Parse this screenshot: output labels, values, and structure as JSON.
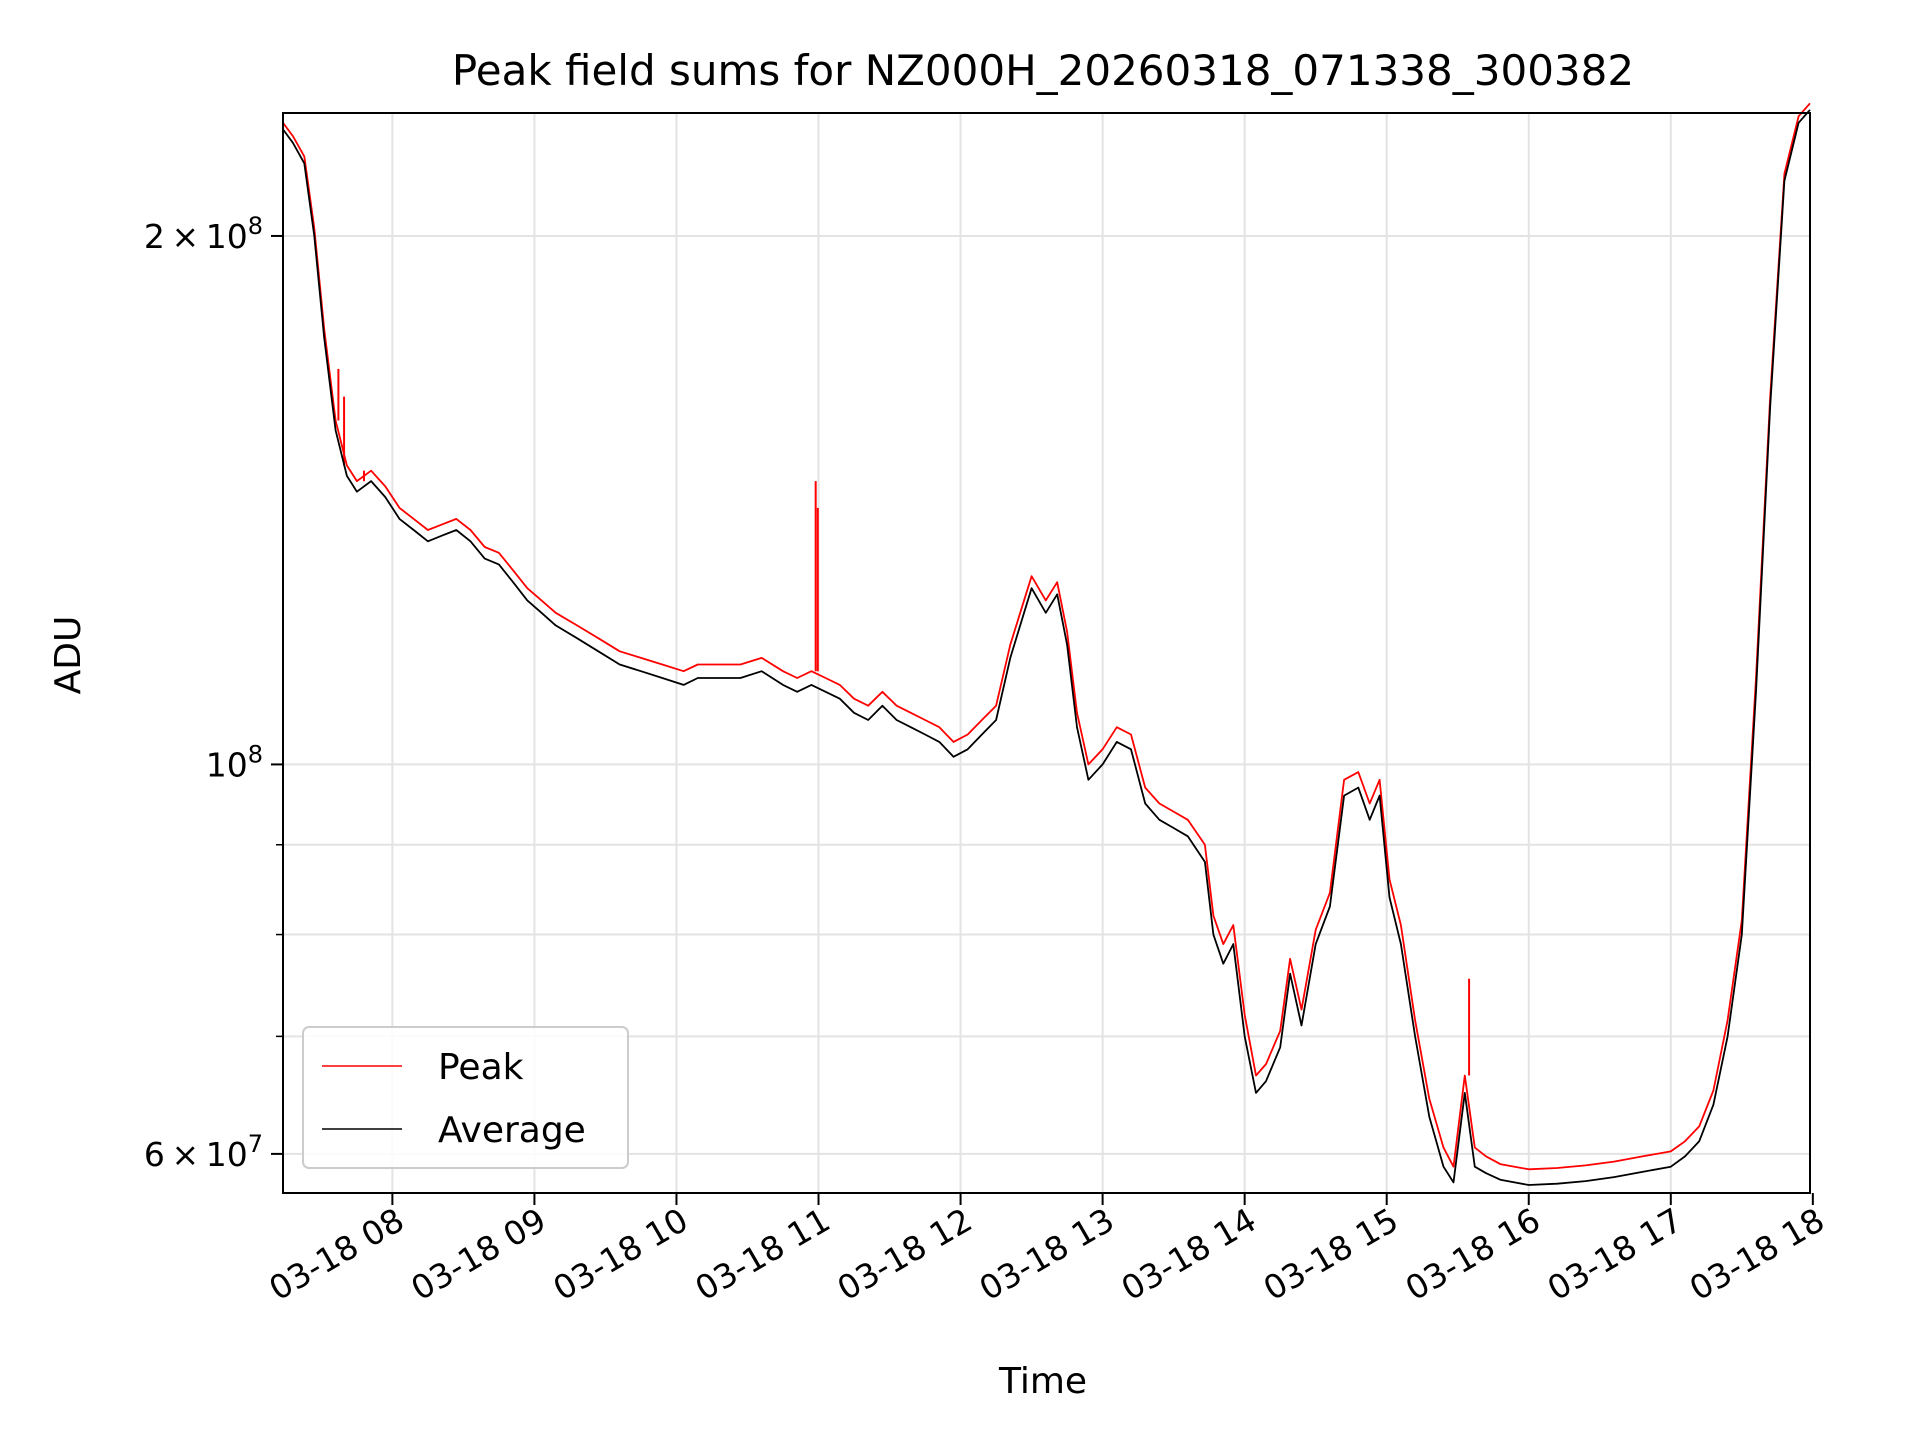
{
  "chart_data": {
    "type": "line",
    "title": "Peak field sums for NZ000H_20260318_071338_300382",
    "xlabel": "Time",
    "ylabel": "ADU",
    "yscale": "log",
    "xlim": [
      7.23,
      17.98
    ],
    "ylim": [
      57000000,
      235000000
    ],
    "grid": true,
    "x_ticks": [
      {
        "value": 8,
        "label": "03-18 08"
      },
      {
        "value": 9,
        "label": "03-18 09"
      },
      {
        "value": 10,
        "label": "03-18 10"
      },
      {
        "value": 11,
        "label": "03-18 11"
      },
      {
        "value": 12,
        "label": "03-18 12"
      },
      {
        "value": 13,
        "label": "03-18 13"
      },
      {
        "value": 14,
        "label": "03-18 14"
      },
      {
        "value": 15,
        "label": "03-18 15"
      },
      {
        "value": 16,
        "label": "03-18 16"
      },
      {
        "value": 17,
        "label": "03-18 17"
      },
      {
        "value": 18,
        "label": "03-18 18"
      }
    ],
    "y_major_ticks": [
      {
        "value": 60000000,
        "mantissa": "6",
        "exponent": "7"
      },
      {
        "value": 100000000,
        "mantissa": "",
        "exponent": "8"
      },
      {
        "value": 200000000,
        "mantissa": "2",
        "exponent": "8"
      }
    ],
    "y_minor_ticks": [
      70000000,
      80000000,
      90000000
    ],
    "legend": {
      "location": "lower-left",
      "entries": [
        {
          "label": "Peak",
          "color": "#ff0000"
        },
        {
          "label": "Average",
          "color": "#000000"
        }
      ]
    },
    "series": [
      {
        "name": "Average",
        "color": "#000000",
        "x": [
          7.23,
          7.3,
          7.38,
          7.45,
          7.52,
          7.6,
          7.68,
          7.75,
          7.85,
          7.95,
          8.05,
          8.15,
          8.25,
          8.35,
          8.45,
          8.55,
          8.65,
          8.75,
          8.85,
          8.95,
          9.05,
          9.15,
          9.3,
          9.45,
          9.6,
          9.75,
          9.9,
          10.05,
          10.15,
          10.3,
          10.45,
          10.6,
          10.75,
          10.85,
          10.95,
          11.05,
          11.15,
          11.25,
          11.35,
          11.45,
          11.55,
          11.65,
          11.75,
          11.85,
          11.95,
          12.05,
          12.15,
          12.25,
          12.35,
          12.42,
          12.5,
          12.6,
          12.68,
          12.75,
          12.82,
          12.9,
          13.0,
          13.1,
          13.2,
          13.3,
          13.4,
          13.5,
          13.6,
          13.72,
          13.78,
          13.85,
          13.92,
          14.0,
          14.08,
          14.15,
          14.25,
          14.32,
          14.4,
          14.5,
          14.6,
          14.7,
          14.8,
          14.88,
          14.95,
          15.02,
          15.1,
          15.2,
          15.3,
          15.4,
          15.47,
          15.55,
          15.62,
          15.7,
          15.8,
          15.9,
          16.0,
          16.2,
          16.4,
          16.6,
          16.8,
          17.0,
          17.1,
          17.2,
          17.3,
          17.4,
          17.5,
          17.6,
          17.7,
          17.8,
          17.9,
          17.98
        ],
        "values": [
          230000000,
          226000000,
          220000000,
          200000000,
          175000000,
          155000000,
          146000000,
          143000000,
          145000000,
          142000000,
          138000000,
          136000000,
          134000000,
          135000000,
          136000000,
          134000000,
          131000000,
          130000000,
          127000000,
          124000000,
          122000000,
          120000000,
          118000000,
          116000000,
          114000000,
          113000000,
          112000000,
          111000000,
          112000000,
          112000000,
          112000000,
          113000000,
          111000000,
          110000000,
          111000000,
          110000000,
          109000000,
          107000000,
          106000000,
          108000000,
          106000000,
          105000000,
          104000000,
          103000000,
          101000000,
          102000000,
          104000000,
          106000000,
          115000000,
          120000000,
          126000000,
          122000000,
          125000000,
          117000000,
          105000000,
          98000000,
          100000000,
          103000000,
          102000000,
          95000000,
          93000000,
          92000000,
          91000000,
          88000000,
          80000000,
          77000000,
          79000000,
          70000000,
          65000000,
          66000000,
          69000000,
          76000000,
          71000000,
          79000000,
          83000000,
          96000000,
          97000000,
          93000000,
          96000000,
          84000000,
          79000000,
          70000000,
          63000000,
          59000000,
          57800000,
          65000000,
          59000000,
          58500000,
          58000000,
          57800000,
          57600000,
          57700000,
          57900000,
          58200000,
          58600000,
          59000000,
          59800000,
          61000000,
          64000000,
          70000000,
          80000000,
          110000000,
          160000000,
          215000000,
          232000000,
          236000000
        ]
      },
      {
        "name": "Peak",
        "color": "#ff0000",
        "x": [
          7.23,
          7.3,
          7.38,
          7.45,
          7.52,
          7.6,
          7.68,
          7.75,
          7.85,
          7.95,
          8.05,
          8.15,
          8.25,
          8.35,
          8.45,
          8.55,
          8.65,
          8.75,
          8.85,
          8.95,
          9.05,
          9.15,
          9.3,
          9.45,
          9.6,
          9.75,
          9.9,
          10.05,
          10.15,
          10.3,
          10.45,
          10.6,
          10.75,
          10.85,
          10.95,
          11.05,
          11.15,
          11.25,
          11.35,
          11.45,
          11.55,
          11.65,
          11.75,
          11.85,
          11.95,
          12.05,
          12.15,
          12.25,
          12.35,
          12.42,
          12.5,
          12.6,
          12.68,
          12.75,
          12.82,
          12.9,
          13.0,
          13.1,
          13.2,
          13.3,
          13.4,
          13.5,
          13.6,
          13.72,
          13.78,
          13.85,
          13.92,
          14.0,
          14.08,
          14.15,
          14.25,
          14.32,
          14.4,
          14.5,
          14.6,
          14.7,
          14.8,
          14.88,
          14.95,
          15.02,
          15.1,
          15.2,
          15.3,
          15.4,
          15.47,
          15.55,
          15.62,
          15.7,
          15.8,
          15.9,
          16.0,
          16.2,
          16.4,
          16.6,
          16.8,
          17.0,
          17.1,
          17.2,
          17.3,
          17.4,
          17.5,
          17.6,
          17.7,
          17.8,
          17.9,
          17.98
        ],
        "values": [
          232000000,
          228000000,
          222000000,
          202000000,
          177000000,
          157000000,
          148000000,
          145000000,
          147000000,
          144000000,
          140000000,
          138000000,
          136000000,
          137000000,
          138000000,
          136000000,
          133000000,
          132000000,
          129000000,
          126000000,
          124000000,
          122000000,
          120000000,
          118000000,
          116000000,
          115000000,
          114000000,
          113000000,
          114000000,
          114000000,
          114000000,
          115000000,
          113000000,
          112000000,
          113000000,
          112000000,
          111000000,
          109000000,
          108000000,
          110000000,
          108000000,
          107000000,
          106000000,
          105000000,
          103000000,
          104000000,
          106000000,
          108000000,
          117000000,
          122000000,
          128000000,
          124000000,
          127000000,
          119000000,
          107000000,
          100000000,
          102000000,
          105000000,
          104000000,
          97000000,
          95000000,
          94000000,
          93000000,
          90000000,
          82000000,
          79000000,
          81000000,
          72000000,
          66500000,
          67500000,
          70500000,
          77500000,
          72500000,
          80500000,
          84500000,
          98000000,
          99000000,
          95000000,
          98000000,
          86000000,
          81000000,
          71500000,
          64500000,
          60500000,
          59000000,
          66500000,
          60500000,
          59800000,
          59200000,
          59000000,
          58800000,
          58900000,
          59100000,
          59400000,
          59800000,
          60200000,
          61000000,
          62200000,
          65200000,
          71500000,
          81500000,
          112000000,
          162000000,
          217000000,
          234000000,
          238000000
        ],
        "spikes": [
          {
            "x": 7.62,
            "value": 168000000
          },
          {
            "x": 7.66,
            "value": 162000000
          },
          {
            "x": 7.8,
            "value": 147000000
          },
          {
            "x": 10.98,
            "value": 145000000
          },
          {
            "x": 10.995,
            "value": 140000000
          },
          {
            "x": 15.58,
            "value": 75500000
          }
        ]
      }
    ]
  }
}
